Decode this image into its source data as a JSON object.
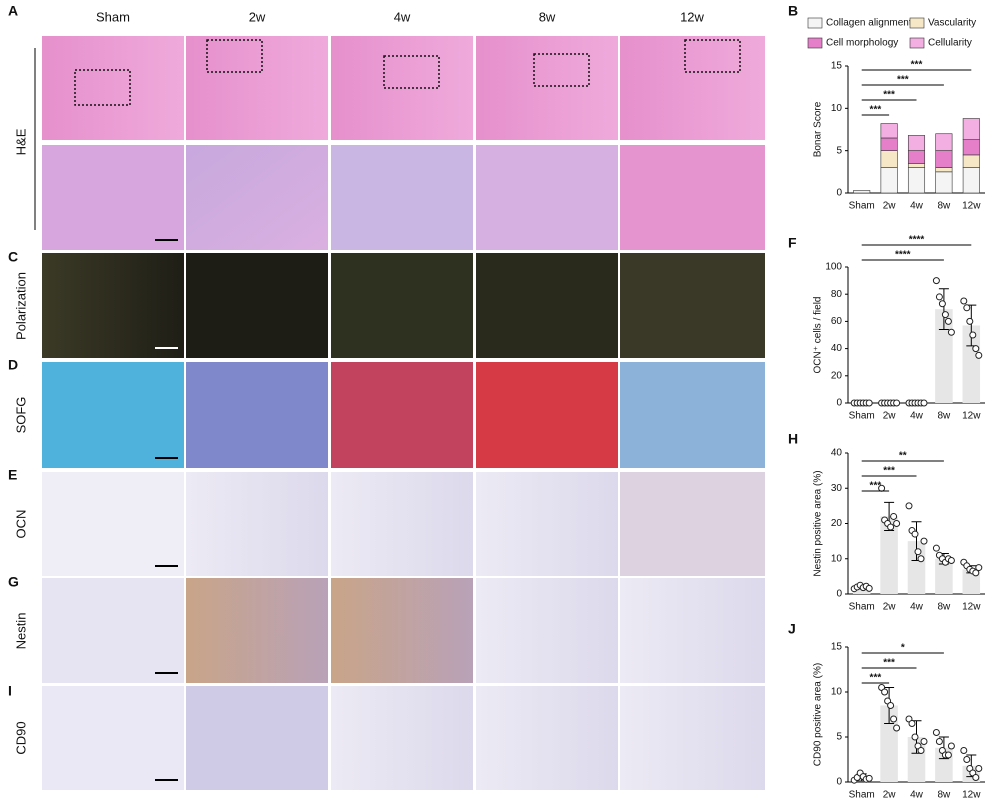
{
  "figure": {
    "panel_letters": [
      "A",
      "B",
      "C",
      "D",
      "E",
      "F",
      "G",
      "H",
      "I",
      "J"
    ],
    "column_labels": [
      "Sham",
      "2w",
      "4w",
      "8w",
      "12w"
    ],
    "row_labels": [
      "H&E",
      "Polarization",
      "SOFG",
      "OCN",
      "Nestin",
      "CD90"
    ]
  },
  "chart_data": [
    {
      "type": "stacked_bar",
      "y_label": "Bonar Score",
      "categories": [
        "Sham",
        "2w",
        "4w",
        "8w",
        "12w"
      ],
      "ylim": [
        0,
        15
      ],
      "yticks": [
        0,
        5,
        10,
        15
      ],
      "series": [
        {
          "name": "Collagen alignment",
          "color": "#f4f4f4",
          "values": [
            0.3,
            3,
            3,
            2.5,
            3
          ]
        },
        {
          "name": "Vascularity",
          "color": "#f6e8c6",
          "values": [
            0,
            2,
            0.5,
            0.5,
            1.5
          ]
        },
        {
          "name": "Cell morphology",
          "color": "#e57fc9",
          "values": [
            0,
            1.5,
            1.5,
            2,
            1.8
          ]
        },
        {
          "name": "Cellularity",
          "color": "#f3aee2",
          "values": [
            0,
            1.7,
            1.8,
            2,
            2.5
          ]
        }
      ],
      "brackets": [
        {
          "label": "***",
          "from": 0,
          "to": 1
        },
        {
          "label": "***",
          "from": 0,
          "to": 2
        },
        {
          "label": "***",
          "from": 0,
          "to": 3
        },
        {
          "label": "***",
          "from": 0,
          "to": 4
        }
      ]
    },
    {
      "type": "bar",
      "y_label": "OCN⁺ cells / field",
      "categories": [
        "Sham",
        "2w",
        "4w",
        "8w",
        "12w"
      ],
      "ylim": [
        0,
        100
      ],
      "yticks": [
        0,
        20,
        40,
        60,
        80,
        100
      ],
      "color": "#e6e6e6",
      "values": [
        0,
        0,
        0,
        69,
        57
      ],
      "errors": [
        0,
        0,
        0,
        15,
        15
      ],
      "points": [
        [
          0,
          0,
          0,
          0,
          0,
          0
        ],
        [
          0,
          0,
          0,
          0,
          0,
          0
        ],
        [
          0,
          0,
          0,
          0,
          0,
          0
        ],
        [
          90,
          78,
          73,
          65,
          60,
          52
        ],
        [
          75,
          70,
          60,
          50,
          40,
          35
        ]
      ],
      "brackets": [
        {
          "label": "****",
          "from": 0,
          "to": 3
        },
        {
          "label": "****",
          "from": 0,
          "to": 4
        }
      ]
    },
    {
      "type": "bar",
      "y_label": "Nestin positive area (%)",
      "categories": [
        "Sham",
        "2w",
        "4w",
        "8w",
        "12w"
      ],
      "ylim": [
        0,
        40
      ],
      "yticks": [
        0,
        10,
        20,
        30,
        40
      ],
      "color": "#e6e6e6",
      "values": [
        2,
        22,
        15,
        10,
        7
      ],
      "errors": [
        0.5,
        4,
        5.5,
        1.5,
        1
      ],
      "points": [
        [
          1.5,
          2,
          2.5,
          1.8,
          2.2,
          1.6
        ],
        [
          30,
          21,
          20,
          19,
          22,
          20
        ],
        [
          25,
          18,
          17,
          12,
          10,
          15
        ],
        [
          13,
          11,
          10,
          9,
          10,
          9.5
        ],
        [
          9,
          8,
          7,
          6.5,
          6,
          7.5
        ]
      ],
      "brackets": [
        {
          "label": "***",
          "from": 0,
          "to": 1
        },
        {
          "label": "***",
          "from": 0,
          "to": 2
        },
        {
          "label": "**",
          "from": 0,
          "to": 3
        }
      ]
    },
    {
      "type": "bar",
      "y_label": "CD90 positive area (%)",
      "categories": [
        "Sham",
        "2w",
        "4w",
        "8w",
        "12w"
      ],
      "ylim": [
        0,
        15
      ],
      "yticks": [
        0,
        5,
        10,
        15
      ],
      "color": "#e6e6e6",
      "values": [
        0.5,
        8.5,
        5,
        3.8,
        1.8
      ],
      "errors": [
        0.4,
        2,
        1.8,
        1.2,
        1.2
      ],
      "points": [
        [
          0.2,
          0.5,
          1,
          0.6,
          0.3,
          0.4
        ],
        [
          10.5,
          10,
          9,
          8.5,
          7,
          6
        ],
        [
          7,
          6.5,
          5,
          4,
          3.5,
          4.5
        ],
        [
          5.5,
          4.5,
          3.5,
          3,
          3,
          4
        ],
        [
          3.5,
          2.5,
          1.5,
          1,
          0.5,
          1.5
        ]
      ],
      "brackets": [
        {
          "label": "***",
          "from": 0,
          "to": 1
        },
        {
          "label": "***",
          "from": 0,
          "to": 2
        },
        {
          "label": "*",
          "from": 0,
          "to": 3
        }
      ]
    }
  ]
}
